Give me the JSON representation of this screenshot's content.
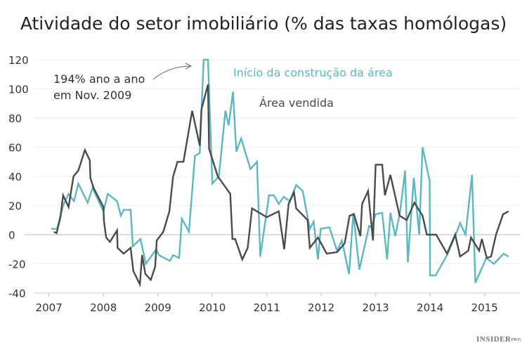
{
  "chart_data": {
    "type": "line",
    "title": "Atividade do setor imobiliário (% das taxas homólogas)",
    "xlabel": "",
    "ylabel": "",
    "xlim": [
      2006.72,
      2015.65
    ],
    "ylim": [
      -40,
      120
    ],
    "x_ticks": [
      "2007",
      "2008",
      "2009",
      "2010",
      "2011",
      "2012",
      "2013",
      "2014",
      "2015"
    ],
    "y_ticks": [
      "120",
      "100",
      "80",
      "60",
      "40",
      "20",
      "0",
      "-20",
      "-40"
    ],
    "grid": true,
    "annotation": [
      "194% ano a ano",
      "em Nov. 2009"
    ],
    "series": [
      {
        "name": "Início da construção da área",
        "color": "#5bb8c0",
        "points": [
          [
            2007.04,
            4
          ],
          [
            2007.15,
            4
          ],
          [
            2007.26,
            20
          ],
          [
            2007.36,
            28
          ],
          [
            2007.46,
            23
          ],
          [
            2007.54,
            35
          ],
          [
            2007.71,
            22
          ],
          [
            2007.8,
            32
          ],
          [
            2008.0,
            16
          ],
          [
            2008.08,
            28
          ],
          [
            2008.25,
            23
          ],
          [
            2008.32,
            13
          ],
          [
            2008.37,
            17
          ],
          [
            2008.5,
            17
          ],
          [
            2008.54,
            -8
          ],
          [
            2008.68,
            -3
          ],
          [
            2008.78,
            -20
          ],
          [
            2008.97,
            -10
          ],
          [
            2009.02,
            -14
          ],
          [
            2009.22,
            -18
          ],
          [
            2009.28,
            -14
          ],
          [
            2009.39,
            -16
          ],
          [
            2009.44,
            11
          ],
          [
            2009.57,
            2
          ],
          [
            2009.68,
            54
          ],
          [
            2009.77,
            56
          ],
          [
            2009.84,
            120
          ],
          [
            2009.92,
            120
          ],
          [
            2010.0,
            35
          ],
          [
            2010.12,
            40
          ],
          [
            2010.24,
            85
          ],
          [
            2010.3,
            75
          ],
          [
            2010.38,
            98
          ],
          [
            2010.44,
            57
          ],
          [
            2010.53,
            66
          ],
          [
            2010.7,
            45
          ],
          [
            2010.82,
            50
          ],
          [
            2010.88,
            -15
          ],
          [
            2011.04,
            27
          ],
          [
            2011.13,
            27
          ],
          [
            2011.22,
            21
          ],
          [
            2011.31,
            26
          ],
          [
            2011.42,
            23
          ],
          [
            2011.54,
            34
          ],
          [
            2011.66,
            30
          ],
          [
            2011.79,
            4
          ],
          [
            2011.86,
            9
          ],
          [
            2011.94,
            -17
          ],
          [
            2011.99,
            4
          ],
          [
            2012.15,
            5
          ],
          [
            2012.29,
            -11
          ],
          [
            2012.38,
            -4
          ],
          [
            2012.51,
            -27
          ],
          [
            2012.59,
            15
          ],
          [
            2012.7,
            -24
          ],
          [
            2012.88,
            6
          ],
          [
            2012.92,
            5
          ],
          [
            2013.0,
            14
          ],
          [
            2013.12,
            15
          ],
          [
            2013.21,
            -17
          ],
          [
            2013.27,
            15
          ],
          [
            2013.36,
            -1
          ],
          [
            2013.45,
            16
          ],
          [
            2013.54,
            44
          ],
          [
            2013.59,
            -19
          ],
          [
            2013.7,
            39
          ],
          [
            2013.8,
            0
          ],
          [
            2013.86,
            60
          ],
          [
            2013.99,
            37
          ],
          [
            2014.0,
            -28
          ],
          [
            2014.1,
            -28
          ],
          [
            2014.31,
            -14
          ],
          [
            2014.46,
            -1
          ],
          [
            2014.55,
            8
          ],
          [
            2014.65,
            0
          ],
          [
            2014.77,
            41
          ],
          [
            2014.83,
            -33
          ],
          [
            2015.03,
            -16
          ],
          [
            2015.17,
            -20
          ],
          [
            2015.35,
            -13
          ],
          [
            2015.44,
            -15
          ]
        ]
      },
      {
        "name": "Área vendida",
        "color": "#4a4a4a",
        "points": [
          [
            2007.09,
            2
          ],
          [
            2007.14,
            1
          ],
          [
            2007.21,
            12
          ],
          [
            2007.26,
            27
          ],
          [
            2007.36,
            19
          ],
          [
            2007.45,
            40
          ],
          [
            2007.54,
            44
          ],
          [
            2007.66,
            58
          ],
          [
            2007.75,
            51
          ],
          [
            2007.76,
            39
          ],
          [
            2007.82,
            32
          ],
          [
            2008.0,
            19
          ],
          [
            2008.01,
            9
          ],
          [
            2008.05,
            -2
          ],
          [
            2008.12,
            -5
          ],
          [
            2008.25,
            3
          ],
          [
            2008.26,
            -9
          ],
          [
            2008.37,
            -13
          ],
          [
            2008.5,
            -9
          ],
          [
            2008.55,
            -25
          ],
          [
            2008.67,
            -34
          ],
          [
            2008.71,
            -14
          ],
          [
            2008.77,
            -27
          ],
          [
            2008.87,
            -31
          ],
          [
            2008.95,
            -22
          ],
          [
            2008.98,
            -4
          ],
          [
            2009.1,
            2
          ],
          [
            2009.21,
            16
          ],
          [
            2009.28,
            40
          ],
          [
            2009.36,
            50
          ],
          [
            2009.47,
            50
          ],
          [
            2009.63,
            85
          ],
          [
            2009.77,
            61
          ],
          [
            2009.8,
            86
          ],
          [
            2009.92,
            103
          ],
          [
            2009.94,
            59
          ],
          [
            2010.1,
            40
          ],
          [
            2010.33,
            28
          ],
          [
            2010.37,
            -3
          ],
          [
            2010.42,
            -3
          ],
          [
            2010.55,
            -17
          ],
          [
            2010.65,
            -9
          ],
          [
            2010.73,
            18
          ],
          [
            2011.0,
            12
          ],
          [
            2011.22,
            16
          ],
          [
            2011.32,
            -10
          ],
          [
            2011.4,
            21
          ],
          [
            2011.5,
            29
          ],
          [
            2011.54,
            18
          ],
          [
            2011.75,
            10
          ],
          [
            2011.79,
            -9
          ],
          [
            2011.94,
            -2
          ],
          [
            2012.1,
            -13
          ],
          [
            2012.29,
            -12
          ],
          [
            2012.43,
            -6
          ],
          [
            2012.52,
            13
          ],
          [
            2012.6,
            14
          ],
          [
            2012.72,
            -1
          ],
          [
            2012.75,
            21
          ],
          [
            2012.86,
            30
          ],
          [
            2012.95,
            -4
          ],
          [
            2013.0,
            48
          ],
          [
            2013.12,
            48
          ],
          [
            2013.17,
            27
          ],
          [
            2013.27,
            41
          ],
          [
            2013.44,
            13
          ],
          [
            2013.57,
            10
          ],
          [
            2013.71,
            22
          ],
          [
            2013.86,
            13
          ],
          [
            2013.94,
            0
          ],
          [
            2014.11,
            0
          ],
          [
            2014.31,
            -13
          ],
          [
            2014.46,
            0
          ],
          [
            2014.55,
            -15
          ],
          [
            2014.7,
            -11
          ],
          [
            2014.75,
            -2
          ],
          [
            2014.9,
            -11
          ],
          [
            2014.95,
            -3
          ],
          [
            2015.04,
            -16
          ],
          [
            2015.12,
            -15
          ],
          [
            2015.21,
            0
          ],
          [
            2015.34,
            14
          ],
          [
            2015.44,
            16
          ]
        ]
      }
    ]
  },
  "brand": {
    "logo_text": "INSIDER",
    "logo_suffix": "PRO"
  }
}
